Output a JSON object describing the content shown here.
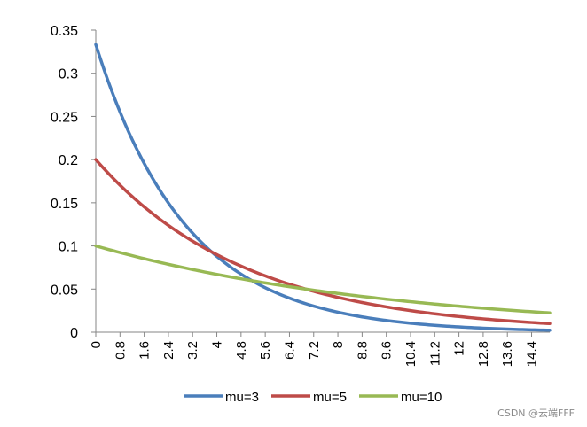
{
  "chart_data": {
    "type": "line",
    "title": "",
    "xlabel": "",
    "ylabel": "",
    "xlim": [
      0,
      15
    ],
    "ylim": [
      0,
      0.35
    ],
    "y_ticks": [
      "0",
      "0.05",
      "0.1",
      "0.15",
      "0.2",
      "0.25",
      "0.3",
      "0.35"
    ],
    "x_ticks": [
      "0",
      "0.8",
      "1.6",
      "2.4",
      "3.2",
      "4",
      "4.8",
      "5.6",
      "6.4",
      "7.2",
      "8",
      "8.8",
      "9.6",
      "10.4",
      "11.2",
      "12",
      "12.8",
      "13.6",
      "14.4"
    ],
    "x_step": 0.1,
    "x_count": 151,
    "grid": false,
    "legend_position": "bottom",
    "series": [
      {
        "name": "mu=3",
        "mu": 3,
        "color": "#4a7ebb"
      },
      {
        "name": "mu=5",
        "mu": 5,
        "color": "#be4b48"
      },
      {
        "name": "mu=10",
        "mu": 10,
        "color": "#98b954"
      }
    ]
  },
  "watermark": "CSDN @云端FFF"
}
